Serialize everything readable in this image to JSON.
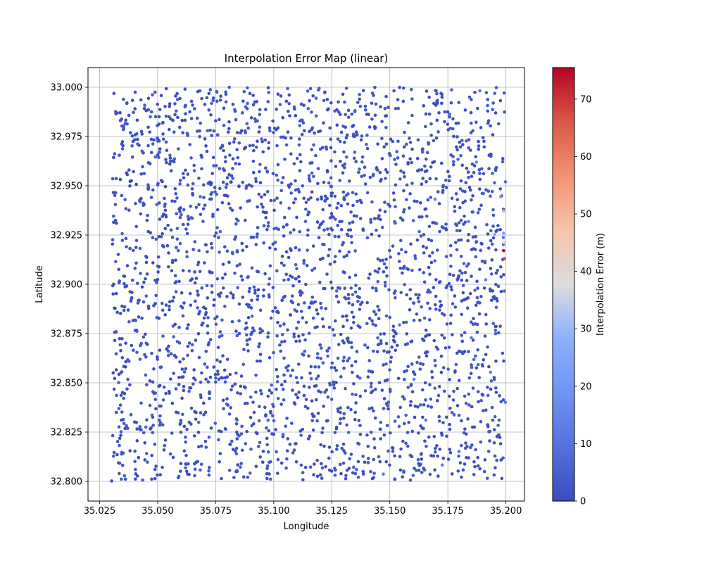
{
  "chart_data": {
    "type": "scatter",
    "title": "Interpolation Error Map (linear)",
    "xlabel": "Longitude",
    "ylabel": "Latitude",
    "xlim": [
      35.02,
      35.208
    ],
    "ylim": [
      32.79,
      33.01
    ],
    "xticks": [
      35.025,
      35.05,
      35.075,
      35.1,
      35.125,
      35.15,
      35.175,
      35.2
    ],
    "xtick_labels": [
      "35.025",
      "35.050",
      "35.075",
      "35.100",
      "35.125",
      "35.150",
      "35.175",
      "35.200"
    ],
    "yticks": [
      32.8,
      32.825,
      32.85,
      32.875,
      32.9,
      32.925,
      32.95,
      32.975,
      33.0
    ],
    "ytick_labels": [
      "32.800",
      "32.825",
      "32.850",
      "32.875",
      "32.900",
      "32.925",
      "32.950",
      "32.975",
      "33.000"
    ],
    "grid": true,
    "colormap": "coolwarm",
    "colorbar": {
      "label": "Interpolation Error (m)",
      "range": [
        0,
        75.5
      ],
      "ticks": [
        0,
        10,
        20,
        30,
        40,
        50,
        60,
        70
      ],
      "tick_labels": [
        "0",
        "10",
        "20",
        "30",
        "40",
        "50",
        "60",
        "70"
      ]
    },
    "points": [
      [
        35.0302,
        32.8002,
        1.2
      ],
      [
        35.0381,
        32.8155,
        0.8
      ],
      [
        35.0453,
        32.8312,
        1.5
      ],
      [
        35.0528,
        32.8478,
        0.6
      ],
      [
        35.0611,
        32.8621,
        1.1
      ],
      [
        35.0695,
        32.8803,
        0.9
      ],
      [
        35.0772,
        32.8956,
        1.4
      ],
      [
        35.0854,
        32.9102,
        0.7
      ],
      [
        35.0931,
        32.9288,
        1.0
      ],
      [
        35.1014,
        32.9437,
        1.3
      ],
      [
        35.1088,
        32.9612,
        0.5
      ],
      [
        35.1163,
        32.9785,
        1.2
      ],
      [
        35.1247,
        32.9921,
        0.9
      ],
      [
        35.1325,
        32.8066,
        1.6
      ],
      [
        35.1402,
        32.8235,
        0.8
      ],
      [
        35.1486,
        32.8394,
        1.1
      ],
      [
        35.1563,
        32.8557,
        0.7
      ],
      [
        35.1641,
        32.8722,
        1.4
      ],
      [
        35.1718,
        32.8887,
        1.0
      ],
      [
        35.1797,
        32.9041,
        2.1
      ],
      [
        35.1872,
        32.9213,
        3.5
      ],
      [
        35.1945,
        32.9378,
        4.2
      ],
      [
        35.1998,
        32.952,
        6.8
      ],
      [
        35.0335,
        32.9655,
        1.3
      ],
      [
        35.0412,
        32.9833,
        0.9
      ],
      [
        35.0489,
        32.9975,
        1.1
      ],
      [
        35.0567,
        32.8122,
        0.6
      ],
      [
        35.0644,
        32.8291,
        1.2
      ],
      [
        35.0723,
        32.8454,
        0.8
      ],
      [
        35.0801,
        32.8619,
        1.5
      ],
      [
        35.0878,
        32.8774,
        0.7
      ],
      [
        35.0956,
        32.8941,
        1.0
      ],
      [
        35.1034,
        32.9108,
        1.3
      ],
      [
        35.1112,
        32.9267,
        0.9
      ],
      [
        35.1189,
        32.9431,
        1.1
      ],
      [
        35.1267,
        32.9598,
        0.6
      ],
      [
        35.1344,
        32.9762,
        1.4
      ],
      [
        35.1422,
        32.9919,
        0.8
      ],
      [
        35.1499,
        32.8083,
        1.2
      ],
      [
        35.1577,
        32.8248,
        0.9
      ],
      [
        35.1654,
        32.8413,
        1.6
      ],
      [
        35.1732,
        32.8577,
        1.0
      ],
      [
        35.1809,
        32.8741,
        2.3
      ],
      [
        35.1887,
        32.8906,
        3.1
      ],
      [
        35.1964,
        32.9071,
        5.4
      ],
      [
        35.1989,
        32.9238,
        9.8
      ],
      [
        35.0318,
        32.9405,
        0.7
      ],
      [
        35.0396,
        32.9572,
        1.3
      ],
      [
        35.0473,
        32.9736,
        0.9
      ],
      [
        35.0551,
        32.9903,
        1.1
      ],
      [
        35.0629,
        32.8037,
        0.8
      ],
      [
        35.0706,
        32.8203,
        1.4
      ],
      [
        35.0784,
        32.8369,
        0.6
      ],
      [
        35.0861,
        32.8534,
        1.2
      ],
      [
        35.0939,
        32.8698,
        1.0
      ],
      [
        35.1016,
        32.8863,
        0.7
      ],
      [
        35.1094,
        32.9028,
        1.5
      ],
      [
        35.1171,
        32.9194,
        0.9
      ],
      [
        35.1249,
        32.9359,
        1.1
      ],
      [
        35.1326,
        32.9524,
        0.8
      ],
      [
        35.1404,
        32.9689,
        1.3
      ],
      [
        35.1481,
        32.9854,
        0.6
      ],
      [
        35.1559,
        32.9996,
        1.2
      ],
      [
        35.1636,
        32.8141,
        0.9
      ],
      [
        35.1714,
        32.8306,
        1.7
      ],
      [
        35.1791,
        32.8471,
        2.0
      ],
      [
        35.1869,
        32.8636,
        2.8
      ],
      [
        35.1946,
        32.8801,
        4.6
      ],
      [
        35.1993,
        32.8966,
        7.9
      ],
      [
        35.199,
        32.9372,
        52.3
      ],
      [
        35.1993,
        32.921,
        46.5
      ],
      [
        35.199,
        32.9171,
        75.0
      ],
      [
        35.1993,
        32.913,
        68.0
      ],
      [
        35.199,
        32.926,
        24.0
      ],
      [
        35.1978,
        32.9445,
        18.4
      ],
      [
        35.1952,
        32.9253,
        26.3
      ],
      [
        35.1873,
        32.962,
        15.2
      ],
      [
        35.1839,
        32.9319,
        12.7
      ],
      [
        35.1913,
        32.9023,
        13.9
      ],
      [
        35.1998,
        32.8401,
        11.5
      ],
      [
        35.1726,
        32.8083,
        12.8
      ],
      [
        35.1655,
        32.8311,
        10.9
      ],
      [
        35.1604,
        32.8518,
        14.3
      ],
      [
        35.1542,
        32.8794,
        8.6
      ],
      [
        35.1472,
        32.8037,
        11.2
      ],
      [
        35.1798,
        32.8152,
        9.7
      ],
      [
        35.1851,
        32.8729,
        10.4
      ],
      [
        35.1695,
        32.9432,
        13.5
      ],
      [
        35.1757,
        32.9861,
        9.1
      ],
      [
        35.1888,
        32.9982,
        11.8
      ],
      [
        35.1627,
        32.9268,
        8.2
      ],
      [
        35.1934,
        32.8554,
        12.1
      ]
    ]
  }
}
